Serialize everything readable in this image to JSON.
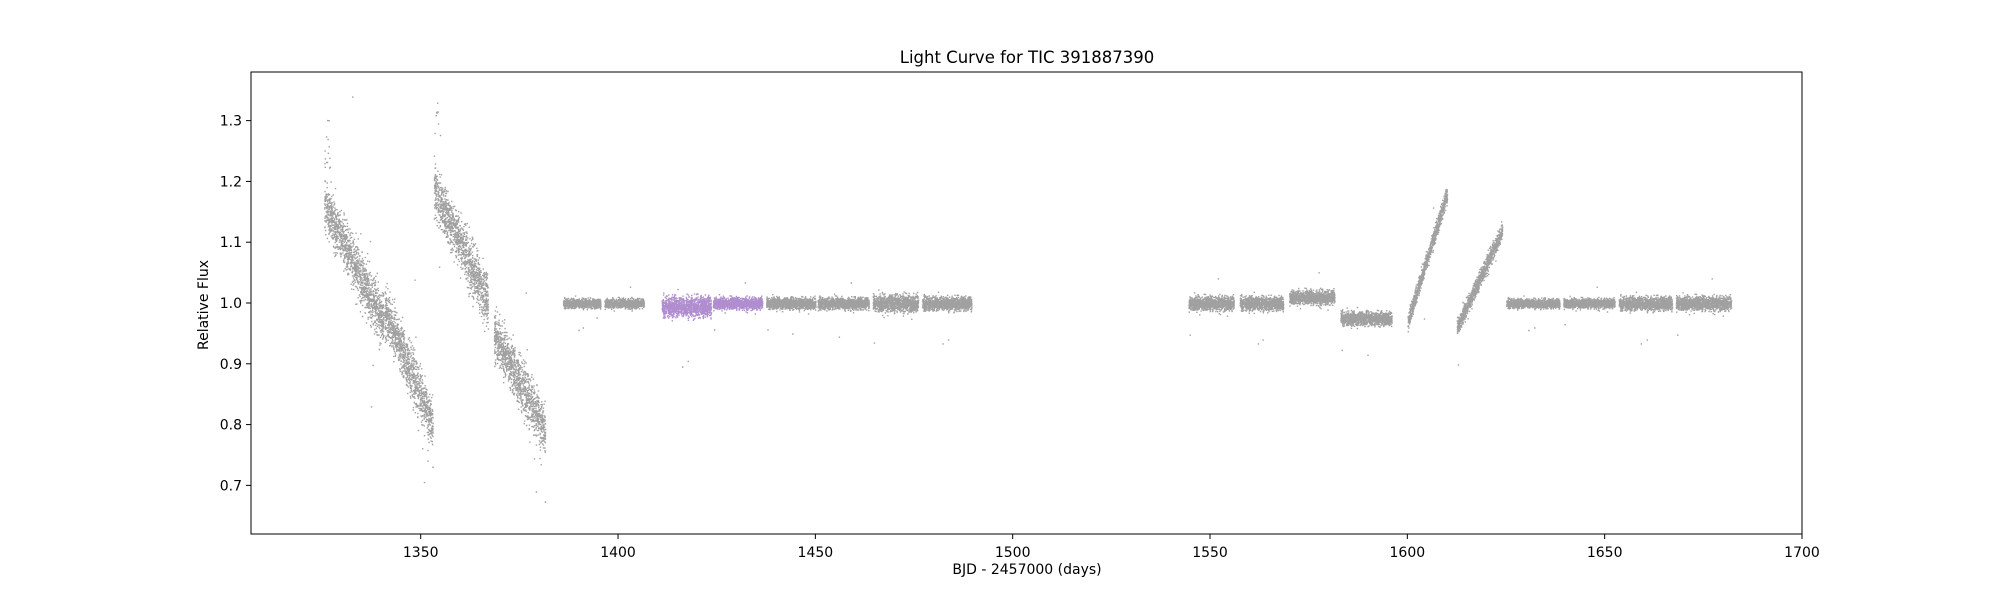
{
  "chart_data": {
    "type": "scatter",
    "title": "Light Curve for TIC 391887390",
    "xlabel": "BJD - 2457000 (days)",
    "ylabel": "Relative Flux",
    "xlim": [
      1307,
      1700
    ],
    "ylim": [
      0.62,
      1.38
    ],
    "x_ticks": [
      1350,
      1400,
      1450,
      1500,
      1550,
      1600,
      1650,
      1700
    ],
    "y_ticks": [
      0.7,
      0.8,
      0.9,
      1.0,
      1.1,
      1.2,
      1.3
    ],
    "x_tick_labels": [
      "1350",
      "1400",
      "1450",
      "1500",
      "1550",
      "1600",
      "1650",
      "1700"
    ],
    "y_tick_labels": [
      "0.7",
      "0.8",
      "0.9",
      "1.0",
      "1.1",
      "1.2",
      "1.3"
    ],
    "grid": false,
    "colors": {
      "base": "#808080",
      "highlight": "#9467bd"
    },
    "series": [
      {
        "color": "#808080",
        "segments": [
          {
            "x_start": 1325.5,
            "x_end": 1340.5,
            "y_start": 1.16,
            "y_end": 0.97,
            "scatter": 0.045,
            "peak": 1.305
          },
          {
            "x_start": 1340.8,
            "x_end": 1353.0,
            "y_start": 0.99,
            "y_end": 0.8,
            "scatter": 0.045,
            "low": 0.72
          },
          {
            "x_start": 1353.3,
            "x_end": 1367.0,
            "y_start": 1.19,
            "y_end": 1.0,
            "scatter": 0.045,
            "peak": 1.34
          },
          {
            "x_start": 1368.5,
            "x_end": 1381.5,
            "y_start": 0.95,
            "y_end": 0.79,
            "scatter": 0.045,
            "low": 0.655
          },
          {
            "x_start": 1386.0,
            "x_end": 1395.5,
            "y_start": 1.0,
            "y_end": 1.0,
            "scatter": 0.008
          },
          {
            "x_start": 1396.5,
            "x_end": 1406.5,
            "y_start": 1.0,
            "y_end": 1.0,
            "scatter": 0.008
          },
          {
            "x_start": 1437.5,
            "x_end": 1450.0,
            "y_start": 1.0,
            "y_end": 1.0,
            "scatter": 0.01
          },
          {
            "x_start": 1450.5,
            "x_end": 1463.5,
            "y_start": 1.0,
            "y_end": 1.0,
            "scatter": 0.01
          },
          {
            "x_start": 1464.5,
            "x_end": 1476.0,
            "y_start": 1.0,
            "y_end": 1.0,
            "scatter": 0.015
          },
          {
            "x_start": 1477.0,
            "x_end": 1489.5,
            "y_start": 1.0,
            "y_end": 1.0,
            "scatter": 0.012
          },
          {
            "x_start": 1544.5,
            "x_end": 1556.0,
            "y_start": 1.0,
            "y_end": 1.0,
            "scatter": 0.012
          },
          {
            "x_start": 1557.5,
            "x_end": 1568.5,
            "y_start": 1.0,
            "y_end": 1.0,
            "scatter": 0.012
          },
          {
            "x_start": 1570.0,
            "x_end": 1581.5,
            "y_start": 1.01,
            "y_end": 1.01,
            "scatter": 0.012
          },
          {
            "x_start": 1583.0,
            "x_end": 1596.0,
            "y_start": 0.975,
            "y_end": 0.975,
            "scatter": 0.012
          },
          {
            "x_start": 1600.0,
            "x_end": 1610.0,
            "y_start": 0.97,
            "y_end": 1.18,
            "scatter": 0.015
          },
          {
            "x_start": 1612.5,
            "x_end": 1624.0,
            "y_start": 0.96,
            "y_end": 1.12,
            "scatter": 0.015
          },
          {
            "x_start": 1625.0,
            "x_end": 1638.5,
            "y_start": 1.0,
            "y_end": 1.0,
            "scatter": 0.008
          },
          {
            "x_start": 1639.5,
            "x_end": 1652.5,
            "y_start": 1.0,
            "y_end": 1.0,
            "scatter": 0.008
          },
          {
            "x_start": 1653.5,
            "x_end": 1667.0,
            "y_start": 1.0,
            "y_end": 1.0,
            "scatter": 0.012
          },
          {
            "x_start": 1668.0,
            "x_end": 1682.0,
            "y_start": 1.0,
            "y_end": 1.0,
            "scatter": 0.012
          }
        ]
      },
      {
        "color": "#9467bd",
        "segments": [
          {
            "x_start": 1411.0,
            "x_end": 1423.5,
            "y_start": 0.995,
            "y_end": 0.995,
            "scatter": 0.018
          },
          {
            "x_start": 1424.0,
            "x_end": 1436.5,
            "y_start": 1.0,
            "y_end": 1.0,
            "scatter": 0.01
          }
        ]
      }
    ]
  }
}
